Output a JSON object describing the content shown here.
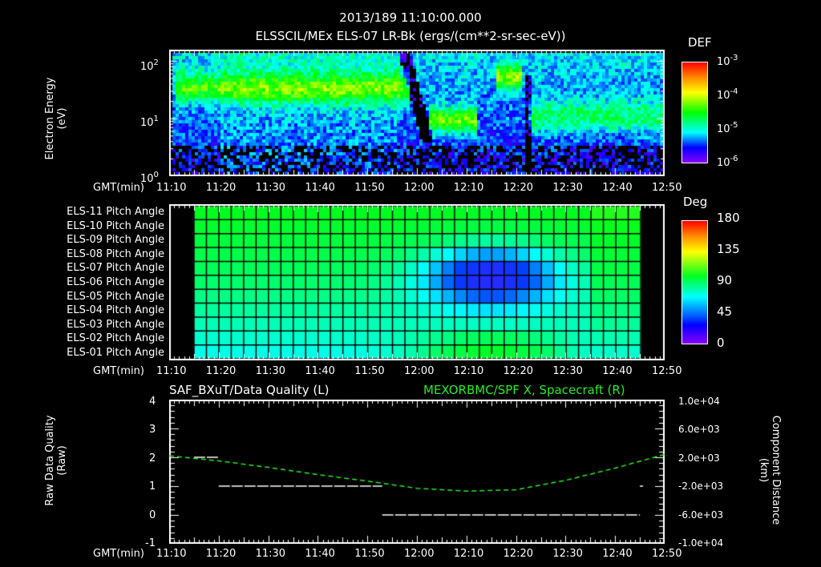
{
  "header": {
    "time_title": "2013/189 11:10:00.000",
    "product_title": "ELSSCIL/MEx ELS-07 LR-Bk  (ergs/(cm**2-sr-sec-eV))"
  },
  "colors": {
    "background": "#000000",
    "axis": "#ffffff",
    "spacecraft_line": "#22ee22",
    "quality_line": "#ffffff"
  },
  "x_axis": {
    "label": "GMT(min)",
    "ticks": [
      "11:10",
      "11:20",
      "11:30",
      "11:40",
      "11:50",
      "12:00",
      "12:10",
      "12:20",
      "12:30",
      "12:40",
      "12:50"
    ]
  },
  "chart_data": [
    {
      "type": "heatmap",
      "title": "ELSSCIL/MEx ELS-07 LR-Bk",
      "ylabel": "Electron Energy (eV)",
      "xlabel": "GMT(min)",
      "yscale": "log",
      "ylim": [
        1,
        150
      ],
      "y_ticks": [
        "10^0",
        "10^1",
        "10^2"
      ],
      "x_range": [
        "11:10",
        "12:50"
      ],
      "colorbar": {
        "label": "DEF",
        "scale": "log",
        "range": [
          1e-06,
          0.001
        ],
        "ticks": [
          "10^-3",
          "10^-4",
          "10^-5",
          "10^-6"
        ]
      },
      "features": [
        {
          "time": "11:12-11:58",
          "energy_eV": "20-60",
          "level": "~1e-4",
          "desc": "green band"
        },
        {
          "time": "11:58-12:01",
          "energy_eV": "5-30",
          "level": "low",
          "desc": "diagonal dropout"
        },
        {
          "time": "12:02-12:10",
          "energy_eV": "5-15",
          "level": "~1e-4",
          "desc": "green blob"
        },
        {
          "time": "12:17-12:19",
          "energy_eV": "30-80",
          "level": "~1e-4",
          "desc": "green patch"
        },
        {
          "time": "12:22-12:50",
          "energy_eV": "6-25",
          "level": "~3e-5",
          "desc": "cyan band"
        }
      ]
    },
    {
      "type": "heatmap",
      "title": "ELS Pitch Angles",
      "ylabel": "",
      "xlabel": "GMT(min)",
      "rows": [
        "ELS-01 Pitch Angle",
        "ELS-02 Pitch Angle",
        "ELS-03 Pitch Angle",
        "ELS-04 Pitch Angle",
        "ELS-05 Pitch Angle",
        "ELS-06 Pitch Angle",
        "ELS-07 Pitch Angle",
        "ELS-08 Pitch Angle",
        "ELS-09 Pitch Angle",
        "ELS-10 Pitch Angle",
        "ELS-11 Pitch Angle"
      ],
      "x_range": [
        "11:15",
        "12:45"
      ],
      "columns": 36,
      "colorbar": {
        "label": "Deg",
        "range": [
          0,
          180
        ],
        "ticks": [
          "180",
          "135",
          "90",
          "45",
          "0"
        ]
      },
      "summary": "Values ~90-110 deg early (green); rows ELS-05..ELS-09 dip to ~35 deg around 12:10-12:20 (blue); ELS-01/02 rise to ~110 deg around 12:10-12:20"
    },
    {
      "type": "line",
      "title_left": "SAF_BXuT/Data Quality (L)",
      "title_right": "MEXORBMC/SPF X, Spacecraft (R)",
      "ylabel_left": "Raw Data Quality (Raw)",
      "ylabel_right": "Component Distance (km)",
      "ylim_left": [
        -1,
        4
      ],
      "y_ticks_left": [
        "4",
        "3",
        "2",
        "1",
        "0",
        "-1"
      ],
      "ylim_right": [
        -10000,
        10000
      ],
      "y_ticks_right": [
        "1.0e+04",
        "6.0e+03",
        "2.0e+03",
        "-2.0e+03",
        "-6.0e+03",
        "-1.0e+04"
      ],
      "series": [
        {
          "name": "Data Quality",
          "axis": "left",
          "color": "#ffffff",
          "segments": [
            {
              "x": [
                "11:15",
                "11:20"
              ],
              "y": 2
            },
            {
              "x": [
                "11:20",
                "11:53"
              ],
              "y": 1
            },
            {
              "x": [
                "11:53",
                "12:45"
              ],
              "y": 0
            },
            {
              "x": [
                "12:45",
                "12:45"
              ],
              "y": 1
            }
          ]
        },
        {
          "name": "SPF X, Spacecraft",
          "axis": "right",
          "color": "#22ee22",
          "x": [
            "11:10",
            "11:20",
            "11:30",
            "11:40",
            "11:50",
            "12:00",
            "12:10",
            "12:20",
            "12:30",
            "12:40",
            "12:50"
          ],
          "values": [
            2200,
            1500,
            600,
            -400,
            -1300,
            -2300,
            -2700,
            -2500,
            -1200,
            500,
            2400
          ]
        }
      ]
    }
  ],
  "panels": {
    "energy": {
      "ylabel_1": "Electron Energy",
      "ylabel_2": "(eV)",
      "y_ticks": [
        {
          "base": "10",
          "exp": "2"
        },
        {
          "base": "10",
          "exp": "1"
        },
        {
          "base": "10",
          "exp": "0"
        }
      ],
      "colorbar_label": "DEF",
      "colorbar_ticks": [
        {
          "base": "10",
          "exp": "-3"
        },
        {
          "base": "10",
          "exp": "-4"
        },
        {
          "base": "10",
          "exp": "-5"
        },
        {
          "base": "10",
          "exp": "-6"
        }
      ]
    },
    "pitch": {
      "rows": [
        "ELS-11 Pitch Angle",
        "ELS-10 Pitch Angle",
        "ELS-09 Pitch Angle",
        "ELS-08 Pitch Angle",
        "ELS-07 Pitch Angle",
        "ELS-06 Pitch Angle",
        "ELS-05 Pitch Angle",
        "ELS-04 Pitch Angle",
        "ELS-03 Pitch Angle",
        "ELS-02 Pitch Angle",
        "ELS-01 Pitch Angle"
      ],
      "colorbar_label": "Deg",
      "colorbar_ticks": [
        "180",
        "135",
        "90",
        "45",
        "0"
      ]
    },
    "quality": {
      "title_left": "SAF_BXuT/Data Quality (L)",
      "title_right": "MEXORBMC/SPF X, Spacecraft (R)",
      "ylabel_left_1": "Raw Data Quality",
      "ylabel_left_2": "(Raw)",
      "ylabel_right_1": "Component Distance",
      "ylabel_right_2": "(km)",
      "left_ticks": [
        "4",
        "3",
        "2",
        "1",
        "0",
        "-1"
      ],
      "right_ticks": [
        "1.0e+04",
        "6.0e+03",
        "2.0e+03",
        "-2.0e+03",
        "-6.0e+03",
        "-1.0e+04"
      ]
    }
  }
}
